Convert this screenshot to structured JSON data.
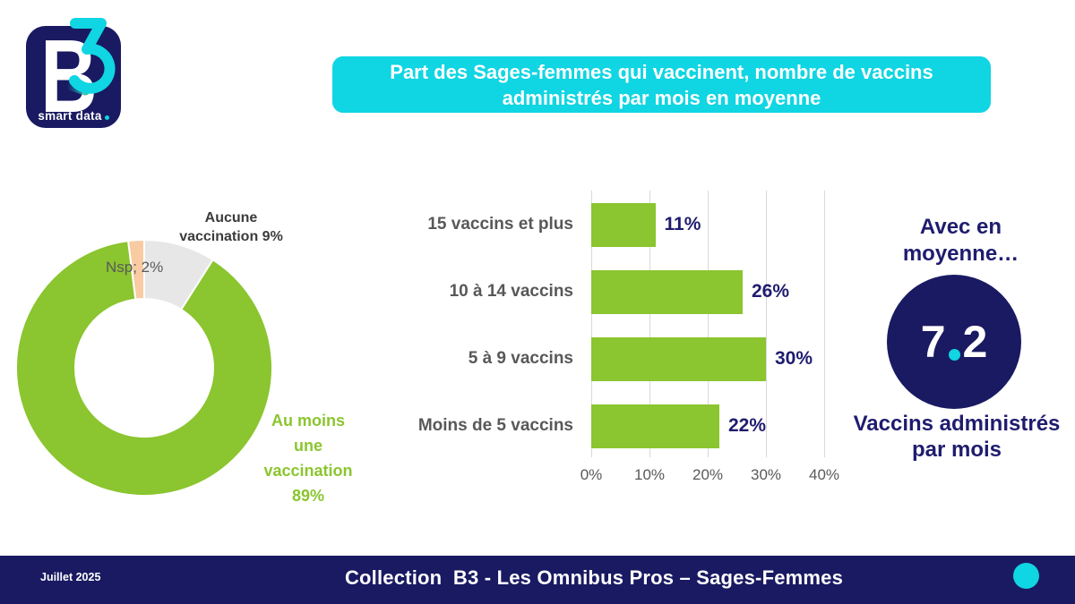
{
  "slide": {
    "title": "Part des Sages-femmes qui vaccinent, nombre de vaccins administrés par mois en moyenne",
    "footer": {
      "date": "Juillet 2025",
      "collection": "Collection  B3 - Les Omnibus Pros – Sages-Femmes"
    },
    "logo": {
      "letter_b": "B",
      "digit_three": "3",
      "tagline": "smart data"
    }
  },
  "colors": {
    "cyan": "#10d5e2",
    "navy": "#191a62",
    "navy_text": "#1f1c6e",
    "green": "#8bc52f",
    "slice_gray": "#e8e7e7",
    "slice_peach": "#f8cba2",
    "label_dark": "#3b3b3b",
    "label_gray": "#595959",
    "grid": "#d9d9d9"
  },
  "chart_data": [
    {
      "id": "donut",
      "type": "pie",
      "donut": true,
      "slices": [
        {
          "label": "Aucune vaccination",
          "value": 9,
          "color": "#e8e7e7"
        },
        {
          "label": "Au moins une vaccination",
          "value": 89,
          "color": "#8bc52f"
        },
        {
          "label": "Nsp",
          "value": 2,
          "color": "#f8cba2"
        }
      ],
      "labels": {
        "aucune_line1": "Aucune",
        "aucune_line2": "vaccination 9%",
        "nsp": "Nsp; 2%",
        "green_line1": "Au moins",
        "green_line2": "une",
        "green_line3": "vaccination",
        "green_line4": "89%"
      }
    },
    {
      "id": "bars",
      "type": "bar",
      "orientation": "horizontal",
      "categories": [
        "15 vaccins et plus",
        "10 à 14 vaccins",
        "5 à 9 vaccins",
        "Moins de 5 vaccins"
      ],
      "values": [
        11,
        26,
        30,
        22
      ],
      "value_labels": [
        "11%",
        "26%",
        "30%",
        "22%"
      ],
      "x_ticks": [
        0,
        10,
        20,
        30,
        40
      ],
      "x_tick_labels": [
        "0%",
        "10%",
        "20%",
        "30%",
        "40%"
      ],
      "xlim": [
        0,
        40
      ],
      "grid": true,
      "legend": false
    }
  ],
  "average_panel": {
    "heading": "Avec en moyenne…",
    "value_integer": "7",
    "value_decimal": "2",
    "value_display": "7.2",
    "caption": "Vaccins administrés par mois"
  }
}
